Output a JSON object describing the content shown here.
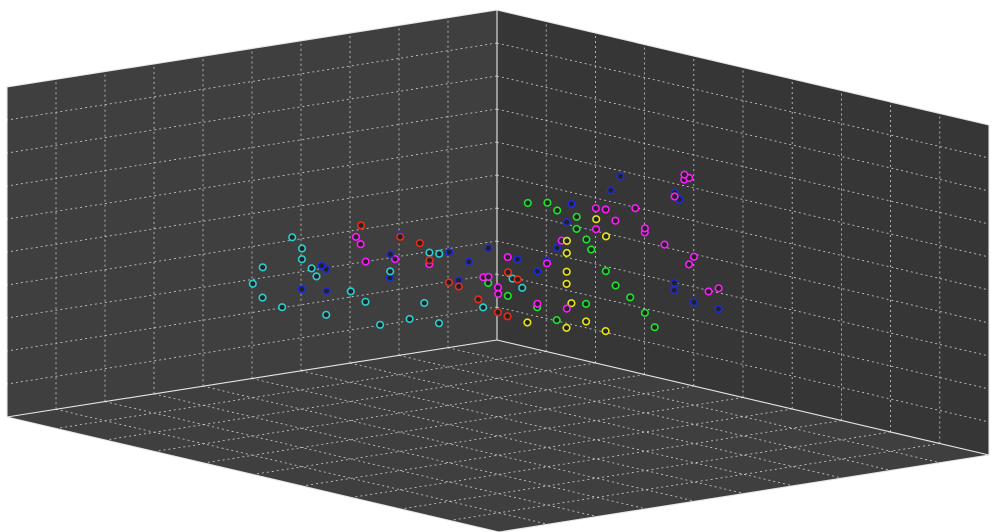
{
  "chart_data": {
    "type": "scatter",
    "projection": "3d-box",
    "grid": true,
    "title": "",
    "xlabel": "",
    "ylabel": "",
    "zlabel": "",
    "colors": {
      "panel": "#3f3f3f",
      "panel_dark": "#363636",
      "grid": "#cfcfcf",
      "edge": "#e6e6e6",
      "background": "#ffffff"
    },
    "series": [
      {
        "color": "#ff19ff",
        "points": [
          [
            0.04,
            0.47,
            0.32
          ],
          [
            0.06,
            0.45,
            0.4
          ],
          [
            0.09,
            0.43,
            0.46
          ],
          [
            0.12,
            0.42,
            0.5
          ],
          [
            0.15,
            0.45,
            0.53
          ],
          [
            0.18,
            0.42,
            0.55
          ],
          [
            0.22,
            0.44,
            0.6
          ],
          [
            0.26,
            0.46,
            0.62
          ],
          [
            0.3,
            0.5,
            0.58
          ],
          [
            0.35,
            0.48,
            0.55
          ],
          [
            0.4,
            0.5,
            0.5
          ],
          [
            0.45,
            0.47,
            0.52
          ],
          [
            0.5,
            0.5,
            0.45
          ],
          [
            0.55,
            0.52,
            0.5
          ],
          [
            0.6,
            0.46,
            0.53
          ],
          [
            0.65,
            0.44,
            0.55
          ],
          [
            0.7,
            0.42,
            0.6
          ],
          [
            0.75,
            0.48,
            0.58
          ],
          [
            0.14,
            0.52,
            0.7
          ],
          [
            0.16,
            0.55,
            0.72
          ],
          [
            0.2,
            0.58,
            0.75
          ],
          [
            0.24,
            0.6,
            0.7
          ],
          [
            0.28,
            0.56,
            0.66
          ],
          [
            0.1,
            0.5,
            0.45
          ],
          [
            0.08,
            0.53,
            0.36
          ],
          [
            0.44,
            0.58,
            0.4
          ],
          [
            0.52,
            0.6,
            0.44
          ],
          [
            0.62,
            0.62,
            0.5
          ],
          [
            0.68,
            0.66,
            0.58
          ],
          [
            0.84,
            0.55,
            0.7
          ]
        ]
      },
      {
        "color": "#1f2bd9",
        "points": [
          [
            0.05,
            0.5,
            0.28
          ],
          [
            0.08,
            0.48,
            0.3
          ],
          [
            0.11,
            0.47,
            0.34
          ],
          [
            0.14,
            0.5,
            0.38
          ],
          [
            0.18,
            0.55,
            0.66
          ],
          [
            0.22,
            0.58,
            0.7
          ],
          [
            0.27,
            0.52,
            0.74
          ],
          [
            0.32,
            0.55,
            0.72
          ],
          [
            0.37,
            0.52,
            0.68
          ],
          [
            0.42,
            0.56,
            0.65
          ],
          [
            0.48,
            0.6,
            0.6
          ],
          [
            0.54,
            0.62,
            0.55
          ],
          [
            0.6,
            0.58,
            0.62
          ],
          [
            0.66,
            0.6,
            0.6
          ],
          [
            0.72,
            0.62,
            0.65
          ],
          [
            0.78,
            0.58,
            0.7
          ],
          [
            0.82,
            0.6,
            0.66
          ],
          [
            0.86,
            0.5,
            0.6
          ],
          [
            0.9,
            0.55,
            0.55
          ],
          [
            0.3,
            0.4,
            0.45
          ],
          [
            0.38,
            0.42,
            0.48
          ],
          [
            0.46,
            0.38,
            0.42
          ],
          [
            0.58,
            0.36,
            0.45
          ],
          [
            0.7,
            0.35,
            0.5
          ],
          [
            0.8,
            0.4,
            0.48
          ]
        ]
      },
      {
        "color": "#2bcfcf",
        "points": [
          [
            0.3,
            0.35,
            0.35
          ],
          [
            0.35,
            0.38,
            0.4
          ],
          [
            0.45,
            0.42,
            0.35
          ],
          [
            0.5,
            0.38,
            0.3
          ],
          [
            0.55,
            0.4,
            0.38
          ],
          [
            0.6,
            0.42,
            0.35
          ],
          [
            0.65,
            0.38,
            0.4
          ],
          [
            0.7,
            0.4,
            0.45
          ],
          [
            0.75,
            0.38,
            0.5
          ],
          [
            0.8,
            0.42,
            0.55
          ],
          [
            0.85,
            0.45,
            0.6
          ],
          [
            0.88,
            0.48,
            0.65
          ],
          [
            0.92,
            0.5,
            0.7
          ],
          [
            0.94,
            0.46,
            0.6
          ],
          [
            0.9,
            0.4,
            0.52
          ],
          [
            0.84,
            0.36,
            0.45
          ],
          [
            0.78,
            0.34,
            0.4
          ],
          [
            0.68,
            0.33,
            0.35
          ],
          [
            0.58,
            0.34,
            0.3
          ],
          [
            0.62,
            0.5,
            0.58
          ],
          [
            0.66,
            0.52,
            0.6
          ],
          [
            0.72,
            0.5,
            0.55
          ]
        ]
      },
      {
        "color": "#19e62b",
        "points": [
          [
            0.12,
            0.44,
            0.22
          ],
          [
            0.16,
            0.46,
            0.28
          ],
          [
            0.2,
            0.47,
            0.34
          ],
          [
            0.26,
            0.5,
            0.4
          ],
          [
            0.3,
            0.52,
            0.46
          ],
          [
            0.36,
            0.55,
            0.55
          ],
          [
            0.4,
            0.58,
            0.6
          ],
          [
            0.46,
            0.62,
            0.66
          ],
          [
            0.5,
            0.66,
            0.72
          ],
          [
            0.56,
            0.68,
            0.76
          ],
          [
            0.6,
            0.7,
            0.8
          ],
          [
            0.66,
            0.72,
            0.82
          ],
          [
            0.34,
            0.46,
            0.3
          ],
          [
            0.4,
            0.48,
            0.36
          ],
          [
            0.48,
            0.5,
            0.42
          ],
          [
            0.54,
            0.52,
            0.48
          ],
          [
            0.22,
            0.4,
            0.3
          ]
        ]
      },
      {
        "color": "#e6e619",
        "points": [
          [
            0.2,
            0.42,
            0.22
          ],
          [
            0.26,
            0.44,
            0.27
          ],
          [
            0.32,
            0.47,
            0.35
          ],
          [
            0.38,
            0.52,
            0.44
          ],
          [
            0.42,
            0.56,
            0.5
          ],
          [
            0.46,
            0.6,
            0.58
          ],
          [
            0.5,
            0.64,
            0.64
          ],
          [
            0.36,
            0.58,
            0.6
          ],
          [
            0.42,
            0.62,
            0.68
          ],
          [
            0.3,
            0.44,
            0.26
          ],
          [
            0.44,
            0.5,
            0.33
          ]
        ]
      },
      {
        "color": "#e62b19",
        "points": [
          [
            0.38,
            0.4,
            0.3
          ],
          [
            0.44,
            0.44,
            0.34
          ],
          [
            0.5,
            0.46,
            0.4
          ],
          [
            0.56,
            0.48,
            0.46
          ],
          [
            0.62,
            0.52,
            0.5
          ],
          [
            0.7,
            0.56,
            0.6
          ],
          [
            0.76,
            0.6,
            0.68
          ],
          [
            0.82,
            0.62,
            0.72
          ],
          [
            0.86,
            0.58,
            0.75
          ],
          [
            0.52,
            0.56,
            0.5
          ],
          [
            0.58,
            0.6,
            0.55
          ]
        ]
      }
    ]
  }
}
